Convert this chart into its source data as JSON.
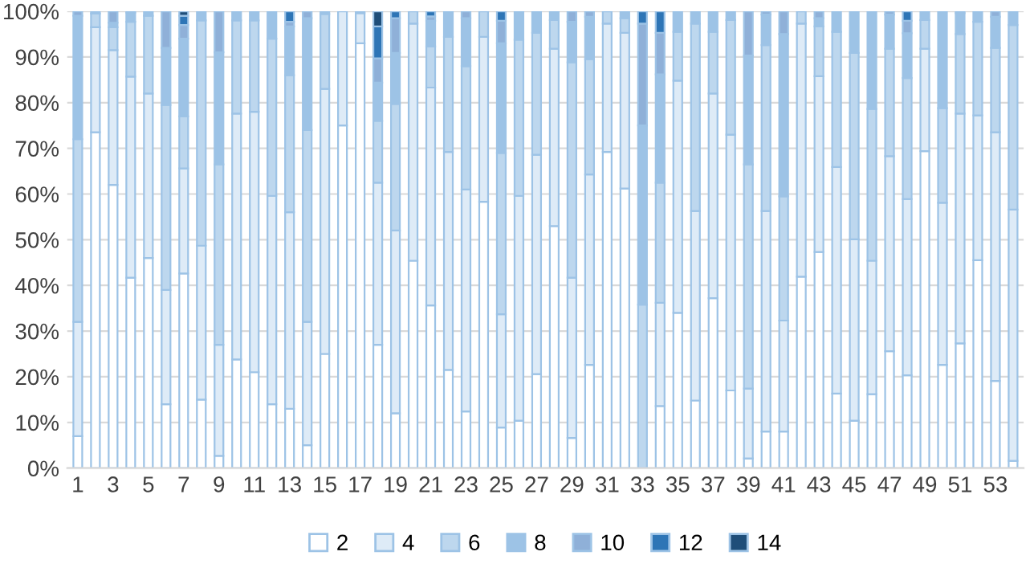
{
  "chart_data": {
    "type": "bar",
    "stacked": true,
    "categories": [
      "1",
      null,
      "3",
      null,
      "5",
      null,
      "7",
      null,
      "9",
      null,
      "11",
      null,
      "13",
      null,
      "15",
      null,
      "17",
      null,
      "19",
      null,
      "21",
      null,
      "23",
      null,
      "25",
      null,
      "27",
      null,
      "29",
      null,
      "31",
      null,
      "33",
      null,
      "35",
      null,
      "37",
      null,
      "39",
      null,
      "41",
      null,
      "43",
      null,
      "45",
      null,
      "47",
      null,
      "49",
      null,
      "51",
      null,
      "53",
      null
    ],
    "series": [
      {
        "name": "2",
        "color": "#ffffff",
        "values": [
          7,
          73.5,
          62,
          41.7,
          46,
          14,
          42.6,
          15,
          2.7,
          23.8,
          21,
          14,
          13,
          5,
          25,
          75,
          93,
          27,
          12,
          45.4,
          35.6,
          21.5,
          12.4,
          58.3,
          8.9,
          10.4,
          20.6,
          53,
          6.6,
          22.6,
          69.2,
          61.2,
          0,
          13.6,
          34,
          14.8,
          37.2,
          17,
          2.1,
          8,
          8,
          41.9,
          47.3,
          16.3,
          10.4,
          16.2,
          25.6,
          20.3,
          69.4,
          22.6,
          27.3,
          45.5,
          19.1,
          1.6
        ]
      },
      {
        "name": "4",
        "color": "#deebf7",
        "values": [
          25,
          23,
          29.5,
          44,
          36,
          25,
          23,
          33.7,
          24.3,
          53.8,
          57,
          45.6,
          43,
          27,
          58,
          25,
          6.6,
          35.5,
          40,
          51.9,
          47.7,
          47.7,
          48.6,
          36.1,
          24.8,
          49.2,
          48,
          38.8,
          35.1,
          41.7,
          28.1,
          34.1,
          0,
          22.6,
          50.8,
          41.5,
          44.8,
          56,
          15.3,
          48.3,
          24.3,
          55.4,
          38.5,
          49.6,
          39.7,
          29.2,
          42.7,
          38.6,
          22.4,
          35.5,
          50.3,
          31.7,
          54.4,
          55
        ]
      },
      {
        "name": "6",
        "color": "#bdd7ee",
        "values": [
          40,
          3,
          5,
          12,
          17,
          40.5,
          11.4,
          49.3,
          39.5,
          20.4,
          20,
          34.4,
          30,
          42,
          16.4,
          0,
          0.4,
          13.5,
          27.7,
          2.7,
          9,
          25.2,
          27,
          5.6,
          35.3,
          34.2,
          26.7,
          6.3,
          47.1,
          25.2,
          2.7,
          3.2,
          35.8,
          26.3,
          10.7,
          41,
          13.5,
          25.1,
          49.1,
          36.3,
          27.2,
          2.7,
          10.9,
          29.6,
          40.8,
          33.2,
          23.5,
          26.5,
          6.3,
          20.7,
          17.4,
          20.5,
          18.5,
          40.4
        ]
      },
      {
        "name": "8",
        "color": "#9dc3e6",
        "values": [
          27,
          0.5,
          1,
          2,
          1,
          12.5,
          17,
          2,
          24.5,
          2,
          2,
          6,
          10.7,
          24.5,
          0.6,
          0,
          0,
          8.4,
          11.2,
          0,
          5.6,
          5.6,
          10.5,
          0,
          24,
          6.2,
          4.7,
          1.9,
          8.9,
          9.3,
          0,
          1.5,
          39.2,
          23.7,
          4.5,
          2.7,
          4.5,
          1.9,
          23.8,
          6.7,
          35.5,
          0,
          1.8,
          4.5,
          9.1,
          21.4,
          7.5,
          9.8,
          1.9,
          21.2,
          4.6,
          2.3,
          6.8,
          3
        ]
      },
      {
        "name": "10",
        "color": "#8fb0d8",
        "values": [
          1,
          0,
          2.5,
          0.3,
          0,
          8,
          3,
          0,
          9,
          0,
          0,
          0,
          1,
          1.5,
          0,
          0,
          0,
          5.3,
          7.6,
          0,
          1,
          0,
          1.5,
          0,
          4.9,
          0,
          0,
          0,
          2.3,
          1.2,
          0,
          0,
          22.3,
          9.1,
          0,
          0,
          0,
          0,
          9.7,
          0.7,
          5,
          0,
          1.5,
          0,
          0,
          0,
          0.7,
          2.7,
          0,
          0,
          0.4,
          0,
          1.2,
          0
        ]
      },
      {
        "name": "12",
        "color": "#2e75b6",
        "values": [
          0,
          0,
          0,
          0,
          0,
          0,
          2,
          0,
          0,
          0,
          0,
          0,
          2.3,
          0,
          0,
          0,
          0,
          7,
          1.5,
          0,
          1.1,
          0,
          0,
          0,
          2.1,
          0,
          0,
          0,
          0,
          0,
          0,
          0,
          2.7,
          4.7,
          0,
          0,
          0,
          0,
          0,
          0,
          0,
          0,
          0,
          0,
          0,
          0,
          0,
          2.1,
          0,
          0,
          0,
          0,
          0,
          0
        ]
      },
      {
        "name": "14",
        "color": "#1f4e79",
        "values": [
          0,
          0,
          0,
          0,
          0,
          0,
          1,
          0,
          0,
          0,
          0,
          0,
          0,
          0,
          0,
          0,
          0,
          3.3,
          0,
          0,
          0,
          0,
          0,
          0,
          0,
          0,
          0,
          0,
          0,
          0,
          0,
          0,
          0,
          0,
          0,
          0,
          0,
          0,
          0,
          0,
          0,
          0,
          0,
          0,
          0,
          0,
          0,
          0,
          0,
          0,
          0,
          0,
          0,
          0
        ]
      }
    ],
    "ylim": [
      0,
      100
    ],
    "yticks": [
      {
        "value": 0,
        "label": "0%"
      },
      {
        "value": 10,
        "label": "10%"
      },
      {
        "value": 20,
        "label": "20%"
      },
      {
        "value": 30,
        "label": "30%"
      },
      {
        "value": 40,
        "label": "40%"
      },
      {
        "value": 50,
        "label": "50%"
      },
      {
        "value": 60,
        "label": "60%"
      },
      {
        "value": 70,
        "label": "70%"
      },
      {
        "value": 80,
        "label": "80%"
      },
      {
        "value": 90,
        "label": "90%"
      },
      {
        "value": 100,
        "label": "100%"
      }
    ],
    "grid": "y",
    "legend": "bottom"
  }
}
